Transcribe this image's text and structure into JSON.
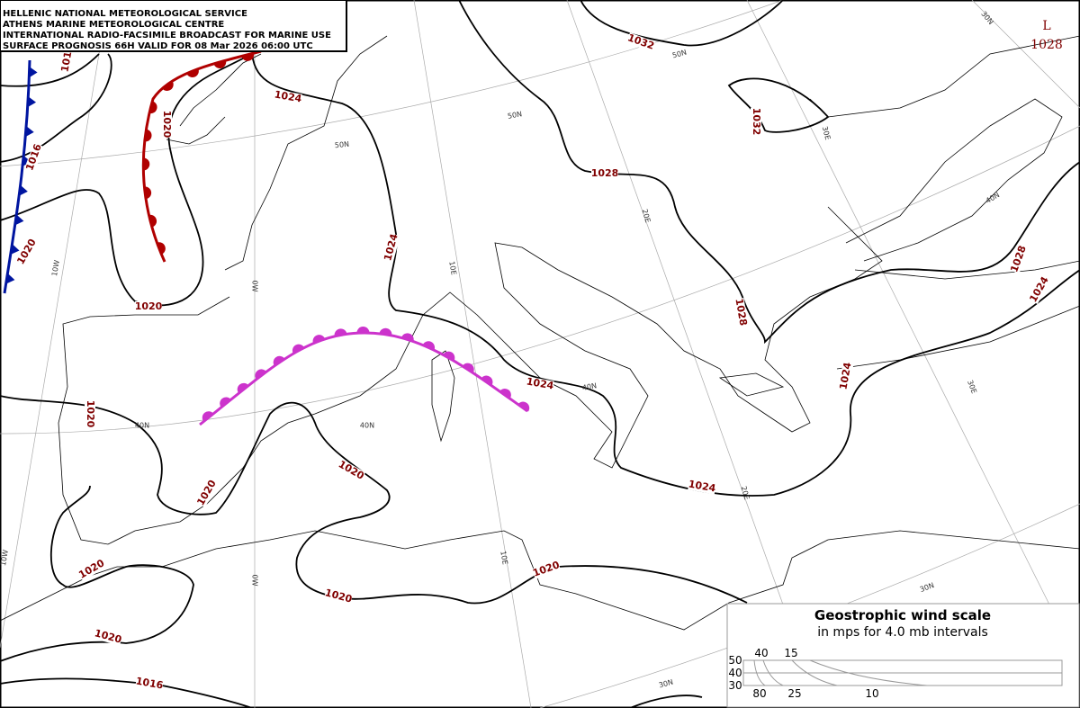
{
  "header": {
    "lines": [
      "HELLENIC NATIONAL METEOROLOGICAL SERVICE",
      "ATHENS MARINE METEOROLOGICAL CENTRE",
      "INTERNATIONAL RADIO-FACSIMILE BROADCAST FOR MARINE USE",
      "SURFACE PROGNOSIS 66H VALID FOR 08 Mar 2026 06:00 UTC"
    ]
  },
  "isobar_labels": [
    "1032",
    "1024",
    "1032",
    "1028",
    "1024",
    "1020",
    "1028",
    "1024",
    "1024",
    "1028",
    "1024",
    "1020",
    "1016",
    "1020",
    "1016",
    "1020",
    "1020",
    "1020",
    "1020",
    "1020",
    "1020",
    "1020",
    "1016",
    "1024"
  ],
  "grid_labels": [
    "50N",
    "50N",
    "50N",
    "40N",
    "40N",
    "40N",
    "40N",
    "30N",
    "30N",
    "30N",
    "30E",
    "30E",
    "20E",
    "20E",
    "10E",
    "10E",
    "0W",
    "0W",
    "10W",
    "10W"
  ],
  "pressure_center": {
    "letter": "L",
    "value": "1028"
  },
  "wind_scale": {
    "title": "Geostrophic wind scale",
    "subtitle": "in mps for 4.0 mb intervals",
    "lat_labels": [
      "50",
      "40",
      "30"
    ],
    "top_labels": [
      "40",
      "15"
    ],
    "bottom_labels": [
      "80",
      "25",
      "10"
    ]
  }
}
